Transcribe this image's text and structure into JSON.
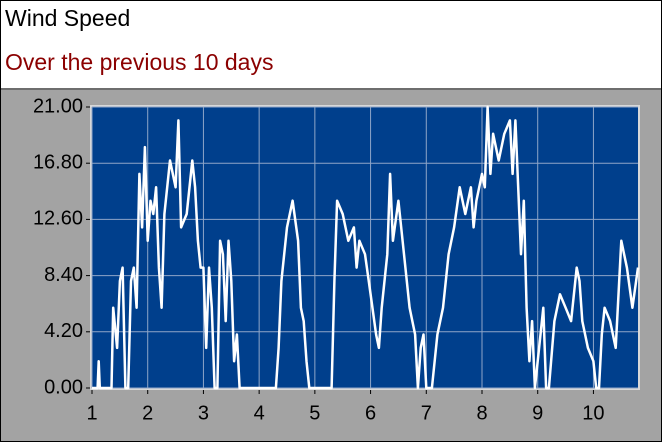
{
  "chart_data": {
    "type": "line",
    "title": "Wind Speed",
    "subtitle": "Over the previous 10 days",
    "x": [
      1.0,
      1.1,
      1.12,
      1.14,
      1.2,
      1.35,
      1.38,
      1.45,
      1.5,
      1.55,
      1.6,
      1.65,
      1.7,
      1.75,
      1.8,
      1.85,
      1.9,
      1.95,
      2.0,
      2.05,
      2.1,
      2.15,
      2.2,
      2.25,
      2.3,
      2.4,
      2.5,
      2.55,
      2.6,
      2.7,
      2.8,
      2.85,
      2.9,
      2.95,
      3.0,
      3.05,
      3.1,
      3.15,
      3.2,
      3.25,
      3.3,
      3.35,
      3.4,
      3.45,
      3.5,
      3.55,
      3.6,
      3.65,
      4.3,
      4.35,
      4.4,
      4.5,
      4.6,
      4.7,
      4.75,
      4.8,
      4.85,
      4.9,
      5.3,
      5.35,
      5.4,
      5.5,
      5.6,
      5.7,
      5.75,
      5.8,
      5.9,
      6.0,
      6.1,
      6.15,
      6.2,
      6.3,
      6.35,
      6.4,
      6.5,
      6.6,
      6.7,
      6.8,
      6.85,
      6.9,
      6.95,
      7.0,
      7.1,
      7.2,
      7.3,
      7.4,
      7.5,
      7.6,
      7.7,
      7.8,
      7.85,
      7.9,
      8.0,
      8.05,
      8.1,
      8.15,
      8.2,
      8.3,
      8.4,
      8.5,
      8.55,
      8.6,
      8.65,
      8.7,
      8.75,
      8.8,
      8.85,
      8.9,
      8.95,
      9.0,
      9.05,
      9.1,
      9.15,
      9.2,
      9.3,
      9.4,
      9.5,
      9.6,
      9.7,
      9.75,
      9.8,
      9.9,
      10.0,
      10.05,
      10.1,
      10.15,
      10.2,
      10.3,
      10.4,
      10.5,
      10.6,
      10.7,
      10.8
    ],
    "series": [
      {
        "name": "Wind Speed",
        "color": "#ffffff",
        "values": [
          0,
          0,
          2,
          0,
          0,
          0,
          6,
          3,
          8,
          9,
          0,
          0,
          8,
          9,
          6,
          16,
          12,
          18,
          11,
          14,
          13,
          15,
          9,
          6,
          13,
          17,
          15,
          20,
          12,
          13,
          17,
          15,
          11,
          9,
          9,
          3,
          9,
          6,
          0,
          0,
          11,
          10,
          5,
          11,
          8,
          2,
          4,
          0,
          0,
          3,
          8,
          12,
          14,
          11,
          6,
          5,
          2,
          0,
          0,
          8,
          14,
          13,
          11,
          12,
          9,
          11,
          10,
          7,
          4,
          3,
          6,
          10,
          16,
          11,
          14,
          10,
          6,
          4,
          0,
          3,
          4,
          0,
          0,
          4,
          6,
          10,
          12,
          15,
          13,
          15,
          12,
          14,
          16,
          15,
          21,
          16,
          19,
          17,
          19,
          20,
          16,
          20,
          15,
          10,
          14,
          6,
          2,
          5,
          0,
          2,
          4,
          6,
          0,
          0,
          5,
          7,
          6,
          5,
          9,
          8,
          5,
          3,
          2,
          0,
          0,
          4,
          6,
          5,
          3,
          11,
          9,
          6,
          9
        ]
      }
    ],
    "xlim": [
      1,
      10.8
    ],
    "xticks": [
      1,
      2,
      3,
      4,
      5,
      6,
      7,
      8,
      9,
      10
    ],
    "ylim": [
      0,
      21
    ],
    "yticks": [
      {
        "value": 0,
        "label": "0.00"
      },
      {
        "value": 4.2,
        "label": "4.20"
      },
      {
        "value": 8.4,
        "label": "8.40"
      },
      {
        "value": 12.6,
        "label": "12.60"
      },
      {
        "value": 16.8,
        "label": "16.80"
      },
      {
        "value": 21,
        "label": "21.00"
      }
    ],
    "grid": true
  }
}
